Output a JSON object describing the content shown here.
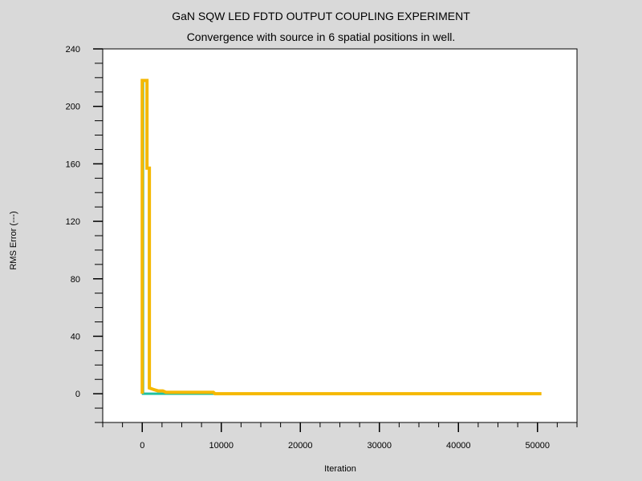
{
  "chart_data": {
    "type": "line",
    "title": "GaN SQW LED FDTD OUTPUT COUPLING EXPERIMENT",
    "subtitle": "Convergence with source in 6 spatial positions in well.",
    "xlabel": "Iteration",
    "ylabel": "RMS Error (---)",
    "xlim": [
      -5000,
      55000
    ],
    "ylim": [
      -20,
      240
    ],
    "x_ticks": [
      0,
      10000,
      20000,
      30000,
      40000,
      50000
    ],
    "x_tick_labels": [
      "0",
      "10000",
      "20000",
      "30000",
      "40000",
      "50000"
    ],
    "y_ticks": [
      0,
      40,
      80,
      120,
      160,
      200,
      240
    ],
    "y_tick_labels": [
      "0",
      "40",
      "80",
      "120",
      "160",
      "200",
      "240"
    ],
    "grid": false,
    "series": [
      {
        "color": "#20c0a0",
        "points": [
          [
            0,
            0
          ],
          [
            0,
            218
          ],
          [
            100,
            218
          ],
          [
            100,
            0
          ],
          [
            200,
            0
          ],
          [
            200,
            0
          ],
          [
            1000,
            0
          ],
          [
            9000,
            0
          ],
          [
            50000,
            0
          ]
        ]
      },
      {
        "color": "#f5b800",
        "points": [
          [
            0,
            0
          ],
          [
            0,
            218
          ],
          [
            600,
            218
          ],
          [
            600,
            157
          ],
          [
            900,
            157
          ],
          [
            900,
            4
          ],
          [
            1400,
            3
          ],
          [
            2000,
            2
          ],
          [
            2600,
            2
          ],
          [
            3000,
            1
          ],
          [
            5000,
            1
          ],
          [
            7500,
            1
          ],
          [
            9000,
            1
          ],
          [
            9200,
            0
          ],
          [
            20000,
            0
          ],
          [
            30000,
            0
          ],
          [
            40000,
            0
          ],
          [
            50500,
            0
          ]
        ]
      }
    ]
  }
}
